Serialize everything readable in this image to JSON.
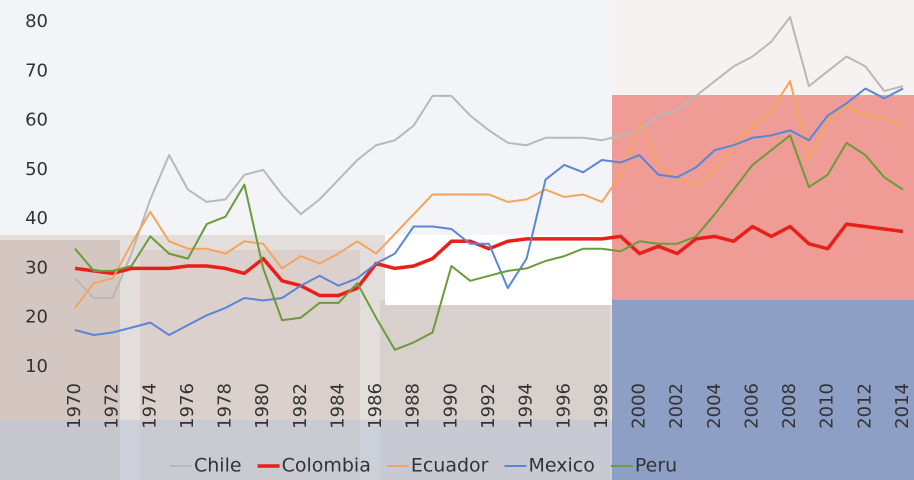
{
  "chart_data": {
    "type": "line",
    "x": [
      1970,
      1971,
      1972,
      1973,
      1974,
      1975,
      1976,
      1977,
      1978,
      1979,
      1980,
      1981,
      1982,
      1983,
      1984,
      1985,
      1986,
      1987,
      1988,
      1989,
      1990,
      1991,
      1992,
      1993,
      1994,
      1995,
      1996,
      1997,
      1998,
      1999,
      2000,
      2001,
      2002,
      2003,
      2004,
      2005,
      2006,
      2007,
      2008,
      2009,
      2010,
      2011,
      2012,
      2013,
      2014
    ],
    "xlim": [
      1970,
      2014
    ],
    "xticks": [
      1970,
      1972,
      1974,
      1976,
      1978,
      1980,
      1982,
      1984,
      1986,
      1988,
      1990,
      1992,
      1994,
      1996,
      1998,
      2000,
      2002,
      2004,
      2006,
      2008,
      2010,
      2012,
      2014
    ],
    "ylim": [
      10,
      80
    ],
    "yticks": [
      10,
      20,
      30,
      40,
      50,
      60,
      70,
      80
    ],
    "grid": false,
    "legend": "bottom",
    "series": [
      {
        "name": "Chile",
        "color": "#b8b8b8",
        "values": [
          28,
          24,
          24,
          33,
          44,
          53,
          46,
          43.5,
          44,
          49,
          50,
          45,
          41,
          44,
          48,
          52,
          55,
          56,
          59,
          65,
          65,
          61,
          58,
          55.5,
          55,
          56.5,
          56.5,
          56.5,
          56,
          57,
          58,
          61,
          62,
          65,
          68,
          71,
          73,
          76,
          81,
          67,
          70,
          73,
          71,
          66,
          67
        ]
      },
      {
        "name": "Colombia",
        "color": "#e8201a",
        "values": [
          30,
          29.5,
          29,
          30,
          30,
          30,
          30.5,
          30.5,
          30,
          29,
          32,
          27.5,
          26.5,
          24.5,
          24.5,
          26,
          31,
          30,
          30.5,
          32,
          35.5,
          35.5,
          34,
          35.5,
          36,
          36,
          36,
          36,
          36,
          36.5,
          33,
          34.5,
          33,
          36,
          36.5,
          35.5,
          38.5,
          36.5,
          38.5,
          35,
          34,
          39,
          38.5,
          38,
          37.5
        ]
      },
      {
        "name": "Ecuador",
        "color": "#f5a45d",
        "values": [
          22,
          27,
          28,
          35,
          41.5,
          35.5,
          34,
          34,
          33,
          35.5,
          35,
          30,
          32.5,
          31,
          33,
          35.5,
          33,
          37,
          41,
          45,
          45,
          45,
          45,
          43.5,
          44,
          46,
          44.5,
          45,
          43.5,
          49,
          59.5,
          51,
          48,
          47,
          50,
          55,
          59,
          62,
          68,
          52,
          60,
          63,
          61,
          60.5,
          59
        ]
      },
      {
        "name": "Mexico",
        "color": "#5b86d6",
        "values": [
          17.5,
          16.5,
          17,
          18,
          19,
          16.5,
          18.5,
          20.5,
          22,
          24,
          23.5,
          24,
          26.5,
          28.5,
          26.5,
          28,
          31,
          33,
          38.5,
          38.5,
          38,
          35,
          35,
          26,
          32,
          48,
          51,
          49.5,
          52,
          51.5,
          53,
          49,
          48.5,
          50.5,
          54,
          55,
          56.5,
          57,
          58,
          56,
          61,
          63.5,
          66.5,
          64.5,
          66.5
        ]
      },
      {
        "name": "Peru",
        "color": "#6b9b3a",
        "values": [
          34,
          29.5,
          29.5,
          30.5,
          36.5,
          33,
          32,
          39,
          40.5,
          47,
          30,
          19.5,
          20,
          23,
          23,
          27,
          20,
          13.5,
          15,
          17,
          30.5,
          27.5,
          28.5,
          29.5,
          30,
          31.5,
          32.5,
          34,
          34,
          33.5,
          35.5,
          35,
          35,
          36.5,
          41,
          46,
          51,
          54,
          57,
          46.5,
          49,
          55.5,
          53,
          48.5,
          46
        ]
      }
    ]
  }
}
